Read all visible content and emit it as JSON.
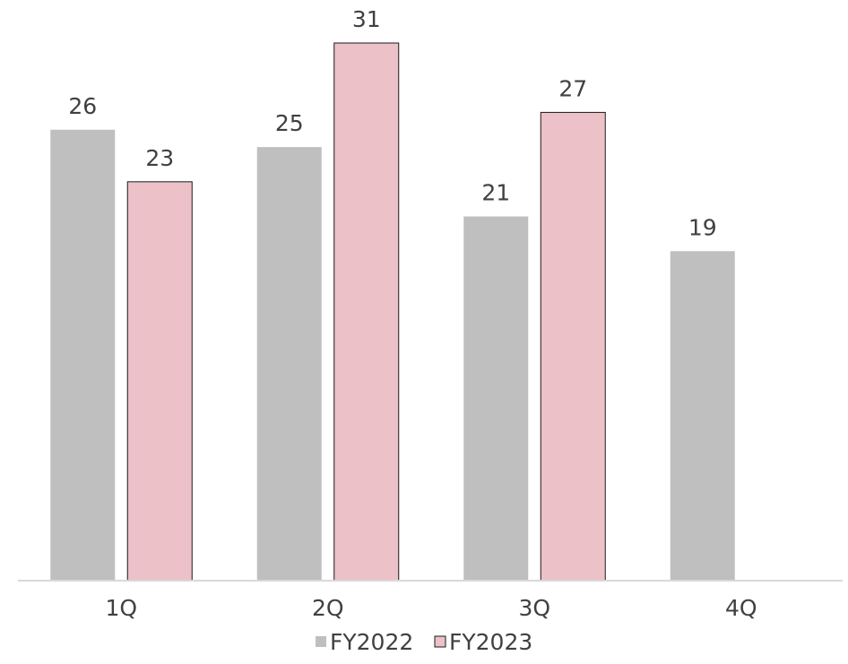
{
  "chart_data": {
    "type": "bar",
    "categories": [
      "1Q",
      "2Q",
      "3Q",
      "4Q"
    ],
    "series": [
      {
        "name": "FY2022",
        "values": [
          26,
          25,
          21,
          19
        ],
        "color": "#bfbfbf",
        "stroke": "none"
      },
      {
        "name": "FY2023",
        "values": [
          23,
          31,
          27,
          null
        ],
        "color": "#ecc1c8",
        "stroke": "#1a1a1a"
      }
    ],
    "ylim": [
      0,
      31
    ],
    "grid": false,
    "data_labels": true,
    "legend_position": "bottom",
    "axis_color": "#d9d9d9"
  }
}
